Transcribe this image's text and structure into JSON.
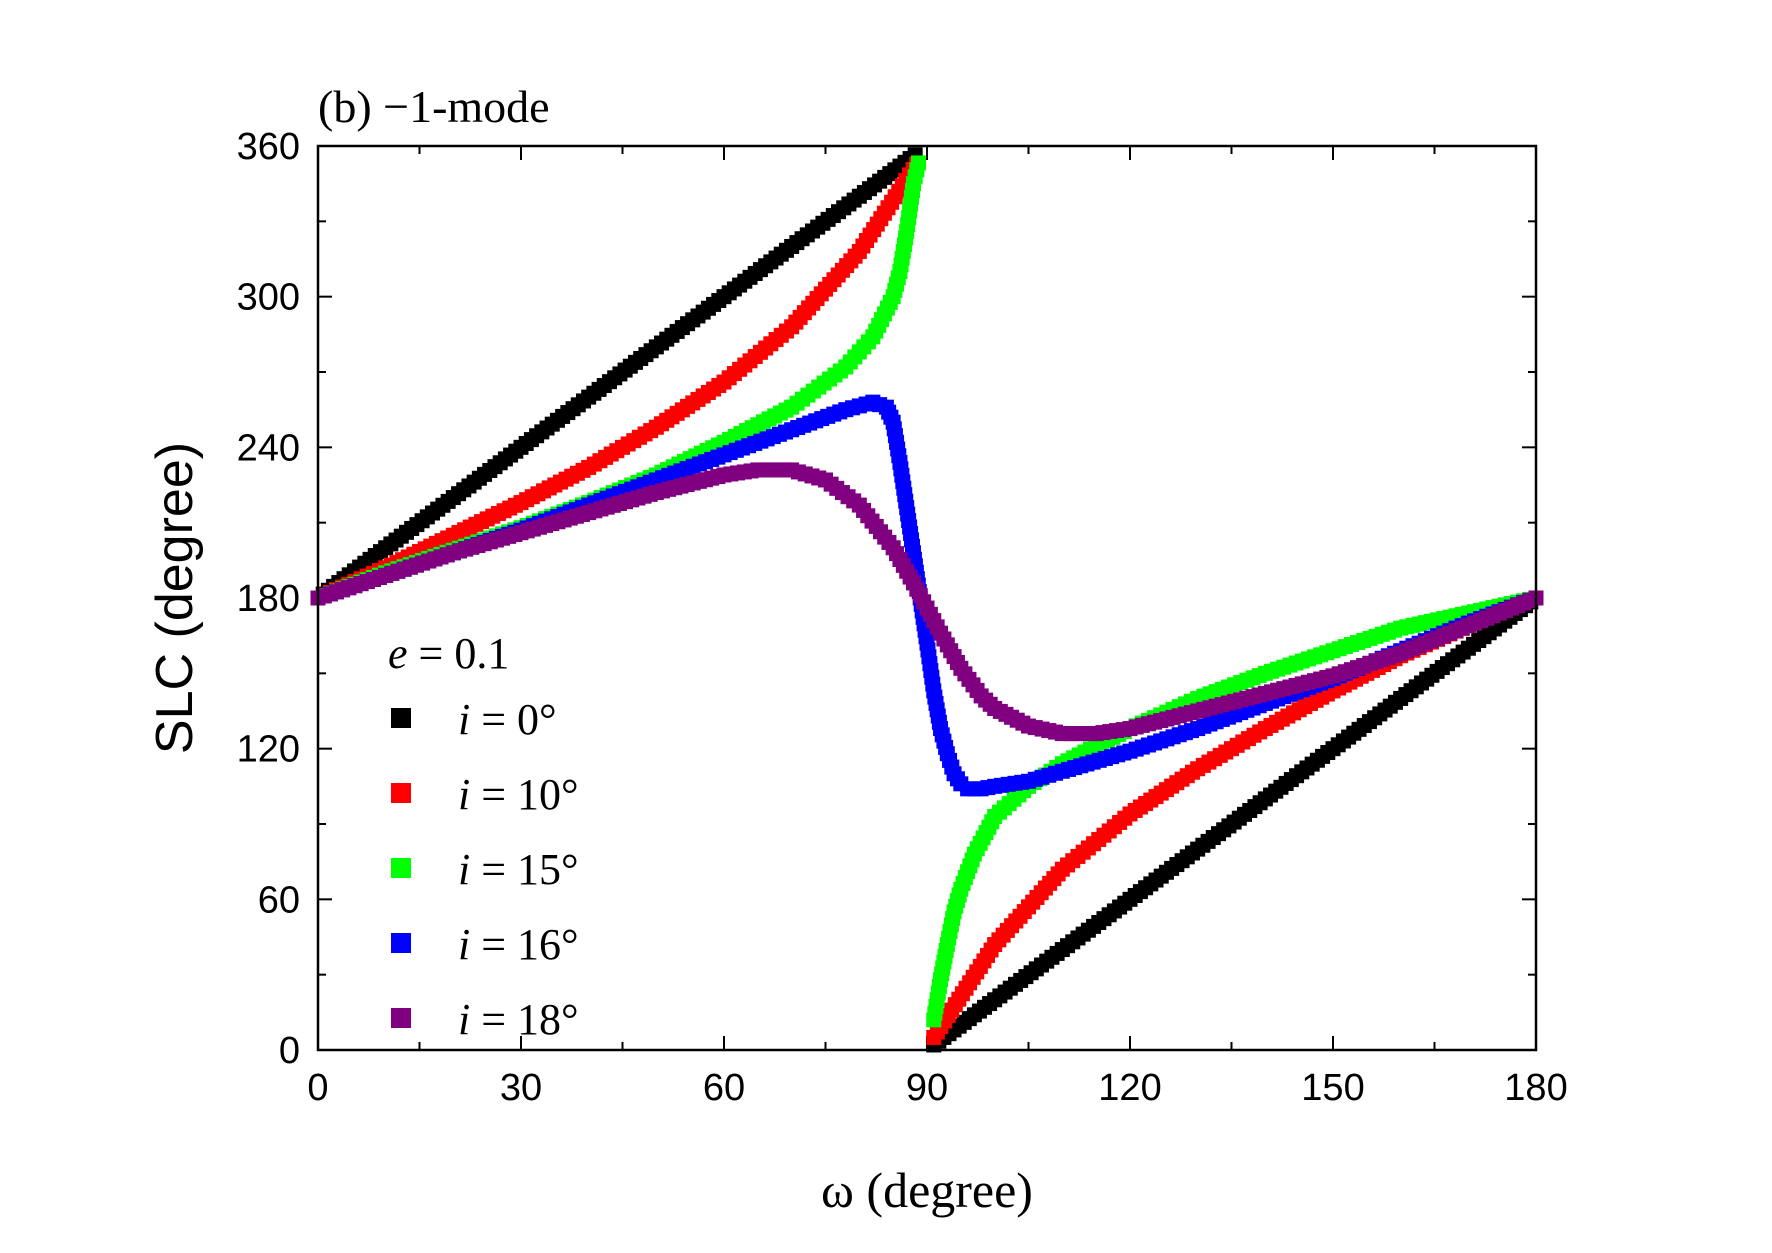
{
  "chart_data": {
    "type": "scatter",
    "title": "(b) −1-mode",
    "xlabel": "ω (degree)",
    "ylabel": "SLC (degree)",
    "xlim": [
      0,
      180
    ],
    "ylim": [
      0,
      360
    ],
    "xticks": [
      0,
      30,
      60,
      90,
      120,
      150,
      180
    ],
    "yticks": [
      0,
      60,
      120,
      180,
      240,
      300,
      360
    ],
    "grid": false,
    "legend": {
      "position": "left",
      "header_var": "e",
      "header_rest": " = 0.1",
      "entries": [
        {
          "var": "i",
          "rest": " = 0°"
        },
        {
          "var": "i",
          "rest": " = 10°"
        },
        {
          "var": "i",
          "rest": " = 15°"
        },
        {
          "var": "i",
          "rest": " = 16°"
        },
        {
          "var": "i",
          "rest": " = 18°"
        }
      ]
    },
    "series": [
      {
        "name": "i = 0°",
        "color": "#000000",
        "x": [
          0,
          10,
          20,
          30,
          40,
          50,
          60,
          70,
          80,
          89,
          91,
          100,
          110,
          120,
          130,
          140,
          150,
          160,
          170,
          180
        ],
        "y": [
          180,
          200,
          220,
          240,
          260,
          280,
          300,
          320,
          340,
          358,
          2,
          20,
          40,
          60,
          80,
          100,
          120,
          140,
          160,
          180
        ]
      },
      {
        "name": "i = 10°",
        "color": "#ff0000",
        "x": [
          0,
          10,
          20,
          30,
          40,
          50,
          60,
          70,
          80,
          89,
          91,
          100,
          110,
          120,
          130,
          140,
          150,
          160,
          170,
          180
        ],
        "y": [
          180,
          192,
          205,
          218,
          232,
          248,
          266,
          288,
          318,
          355,
          5,
          42,
          72,
          94,
          112,
          128,
          143,
          157,
          169,
          180
        ]
      },
      {
        "name": "i = 15°",
        "color": "#00ff00",
        "x": [
          0,
          10,
          20,
          30,
          40,
          50,
          60,
          70,
          78,
          82,
          85,
          86,
          87,
          88,
          89,
          91,
          92,
          93,
          94,
          95,
          97,
          100,
          105,
          110,
          120,
          130,
          140,
          150,
          160,
          170,
          180
        ],
        "y": [
          180,
          190,
          199,
          208,
          218,
          229,
          242,
          256,
          272,
          284,
          300,
          310,
          326,
          345,
          356,
          12,
          28,
          42,
          55,
          64,
          78,
          93,
          105,
          114,
          128,
          140,
          150,
          159,
          168,
          174,
          180
        ]
      },
      {
        "name": "i = 16°",
        "color": "#0000ff",
        "x": [
          0,
          10,
          20,
          30,
          40,
          50,
          60,
          70,
          78,
          82,
          84,
          85,
          86,
          87,
          88,
          89,
          90,
          91,
          92,
          93,
          94,
          95,
          96,
          98,
          100,
          105,
          110,
          120,
          130,
          140,
          150,
          160,
          170,
          180
        ],
        "y": [
          180,
          189,
          198,
          207,
          217,
          227,
          237,
          247,
          255,
          258,
          256,
          250,
          234,
          216,
          198,
          180,
          162,
          143,
          128,
          118,
          110,
          106,
          104,
          104,
          105,
          107,
          111,
          119,
          128,
          138,
          148,
          159,
          170,
          180
        ]
      },
      {
        "name": "i = 18°",
        "color": "#800080",
        "x": [
          0,
          10,
          20,
          30,
          40,
          50,
          60,
          65,
          70,
          75,
          80,
          85,
          88,
          90,
          92,
          95,
          98,
          100,
          105,
          110,
          115,
          120,
          130,
          140,
          150,
          160,
          170,
          180
        ],
        "y": [
          180,
          189,
          198,
          206,
          214,
          222,
          229,
          231,
          231,
          227,
          217,
          200,
          186,
          176,
          166,
          152,
          141,
          136,
          129,
          126,
          126,
          128,
          135,
          142,
          149,
          158,
          169,
          180
        ]
      }
    ]
  }
}
